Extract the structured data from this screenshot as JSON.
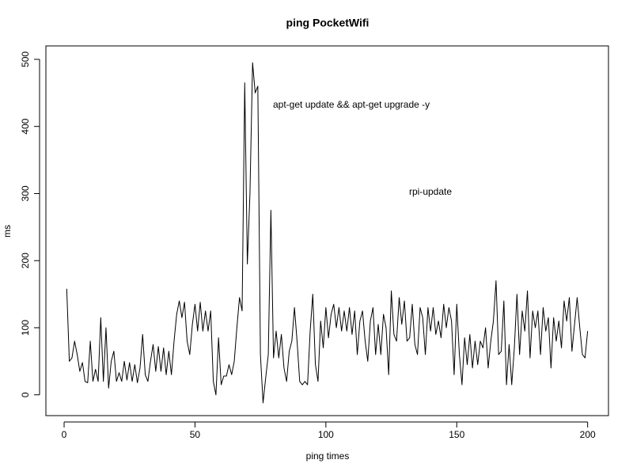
{
  "chart_data": {
    "type": "line",
    "title": "ping PocketWifi",
    "x_label": "ping times",
    "y_label": "ms",
    "annotations": [
      "apt-get update && apt-get upgrade -y",
      "rpi-update"
    ],
    "x": [
      1,
      2,
      3,
      4,
      5,
      6,
      7,
      8,
      9,
      10,
      11,
      12,
      13,
      14,
      15,
      16,
      17,
      18,
      19,
      20,
      21,
      22,
      23,
      24,
      25,
      26,
      27,
      28,
      29,
      30,
      31,
      32,
      33,
      34,
      35,
      36,
      37,
      38,
      39,
      40,
      41,
      42,
      43,
      44,
      45,
      46,
      47,
      48,
      49,
      50,
      51,
      52,
      53,
      54,
      55,
      56,
      57,
      58,
      59,
      60,
      61,
      62,
      63,
      64,
      65,
      66,
      67,
      68,
      69,
      70,
      71,
      72,
      73,
      74,
      75,
      76,
      77,
      78,
      79,
      80,
      81,
      82,
      83,
      84,
      85,
      86,
      87,
      88,
      89,
      90,
      91,
      92,
      93,
      94,
      95,
      96,
      97,
      98,
      99,
      100,
      101,
      102,
      103,
      104,
      105,
      106,
      107,
      108,
      109,
      110,
      111,
      112,
      113,
      114,
      115,
      116,
      117,
      118,
      119,
      120,
      121,
      122,
      123,
      124,
      125,
      126,
      127,
      128,
      129,
      130,
      131,
      132,
      133,
      134,
      135,
      136,
      137,
      138,
      139,
      140,
      141,
      142,
      143,
      144,
      145,
      146,
      147,
      148,
      149,
      150,
      151,
      152,
      153,
      154,
      155,
      156,
      157,
      158,
      159,
      160,
      161,
      162,
      163,
      164,
      165,
      166,
      167,
      168,
      169,
      170,
      171,
      172,
      173,
      174,
      175,
      176,
      177,
      178,
      179,
      180,
      181,
      182,
      183,
      184,
      185,
      186,
      187,
      188,
      189,
      190,
      191,
      192,
      193,
      194,
      195,
      196,
      197,
      198,
      199,
      200
    ],
    "values": [
      158,
      50,
      55,
      80,
      60,
      35,
      48,
      20,
      18,
      80,
      20,
      38,
      20,
      115,
      20,
      100,
      10,
      50,
      65,
      20,
      33,
      20,
      50,
      22,
      48,
      20,
      45,
      18,
      40,
      90,
      30,
      20,
      50,
      75,
      35,
      72,
      35,
      70,
      30,
      65,
      30,
      80,
      120,
      140,
      115,
      138,
      80,
      60,
      105,
      135,
      95,
      138,
      95,
      125,
      95,
      125,
      20,
      0,
      85,
      15,
      28,
      28,
      45,
      30,
      50,
      100,
      145,
      125,
      465,
      195,
      300,
      495,
      450,
      460,
      60,
      -12,
      25,
      60,
      275,
      55,
      95,
      55,
      90,
      40,
      20,
      65,
      80,
      130,
      80,
      20,
      15,
      20,
      15,
      95,
      150,
      45,
      20,
      110,
      70,
      130,
      85,
      120,
      135,
      100,
      130,
      95,
      125,
      95,
      130,
      90,
      125,
      60,
      110,
      125,
      80,
      50,
      110,
      130,
      60,
      105,
      60,
      120,
      100,
      30,
      155,
      90,
      80,
      145,
      105,
      140,
      80,
      85,
      135,
      75,
      60,
      130,
      115,
      60,
      130,
      95,
      130,
      90,
      110,
      85,
      135,
      100,
      130,
      110,
      30,
      135,
      60,
      15,
      85,
      45,
      90,
      40,
      80,
      45,
      80,
      70,
      100,
      40,
      80,
      110,
      170,
      60,
      65,
      140,
      15,
      75,
      15,
      70,
      150,
      60,
      125,
      95,
      155,
      55,
      125,
      100,
      125,
      60,
      130,
      95,
      115,
      40,
      115,
      80,
      110,
      70,
      140,
      110,
      145,
      65,
      105,
      145,
      100,
      60,
      55,
      95
    ],
    "color": "#000000",
    "xlim": [
      -6.96,
      207.96
    ],
    "ylim": [
      -31,
      520
    ],
    "xticks": [
      0,
      50,
      100,
      150,
      200
    ],
    "yticks": [
      0,
      100,
      200,
      300,
      400,
      500
    ],
    "grid": false
  }
}
